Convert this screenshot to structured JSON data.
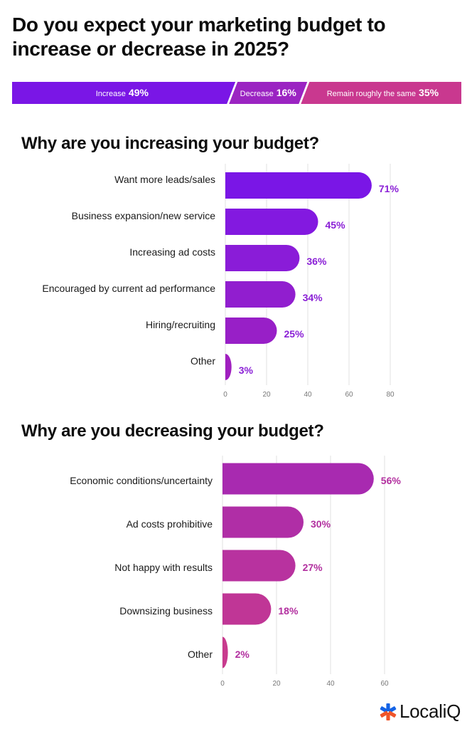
{
  "title": "Do you expect your marketing budget to increase or decrease in 2025?",
  "summary_bar": {
    "segments": [
      {
        "label": "Increase",
        "value": 49,
        "value_label": "49%",
        "color": "#7a16e6"
      },
      {
        "label": "Decrease",
        "value": 16,
        "value_label": "16%",
        "color": "#9b24c2"
      },
      {
        "label": "Remain roughly the same",
        "value": 35,
        "value_label": "35%",
        "color": "#c9388f"
      }
    ]
  },
  "chart_data": [
    {
      "type": "bar",
      "orientation": "horizontal",
      "title": "Why are you increasing your budget?",
      "categories": [
        "Want more leads/sales",
        "Business expansion/new service",
        "Increasing ad costs",
        "Encouraged by current ad performance",
        "Hiring/recruiting",
        "Other"
      ],
      "values": [
        71,
        45,
        36,
        34,
        25,
        3
      ],
      "value_labels": [
        "71%",
        "45%",
        "36%",
        "34%",
        "25%",
        "3%"
      ],
      "xlim": [
        0,
        80
      ],
      "xticks": [
        0,
        20,
        40,
        60,
        80
      ],
      "xtick_labels": [
        "0",
        "20",
        "40",
        "60",
        "80"
      ],
      "grid": true,
      "colors": [
        "#7a16e6",
        "#8319e0",
        "#8a1cd8",
        "#911ecf",
        "#981fc7",
        "#a020bf"
      ],
      "label_color": "#8a1fd6"
    },
    {
      "type": "bar",
      "orientation": "horizontal",
      "title": "Why are you decreasing your budget?",
      "categories": [
        "Economic conditions/uncertainty",
        "Ad costs prohibitive",
        "Not happy with results",
        "Downsizing business",
        "Other"
      ],
      "values": [
        56,
        30,
        27,
        18,
        2
      ],
      "value_labels": [
        "56%",
        "30%",
        "27%",
        "18%",
        "2%"
      ],
      "xlim": [
        0,
        65
      ],
      "xticks": [
        0,
        20,
        40,
        60
      ],
      "xtick_labels": [
        "0",
        "20",
        "40",
        "60"
      ],
      "grid": true,
      "colors": [
        "#a82ab0",
        "#b02ea6",
        "#b8329f",
        "#c03696",
        "#c83a8e"
      ],
      "label_color": "#b22f9f"
    }
  ],
  "logo": {
    "text": "LocaliQ",
    "icon": "asterisk-logo-icon"
  }
}
